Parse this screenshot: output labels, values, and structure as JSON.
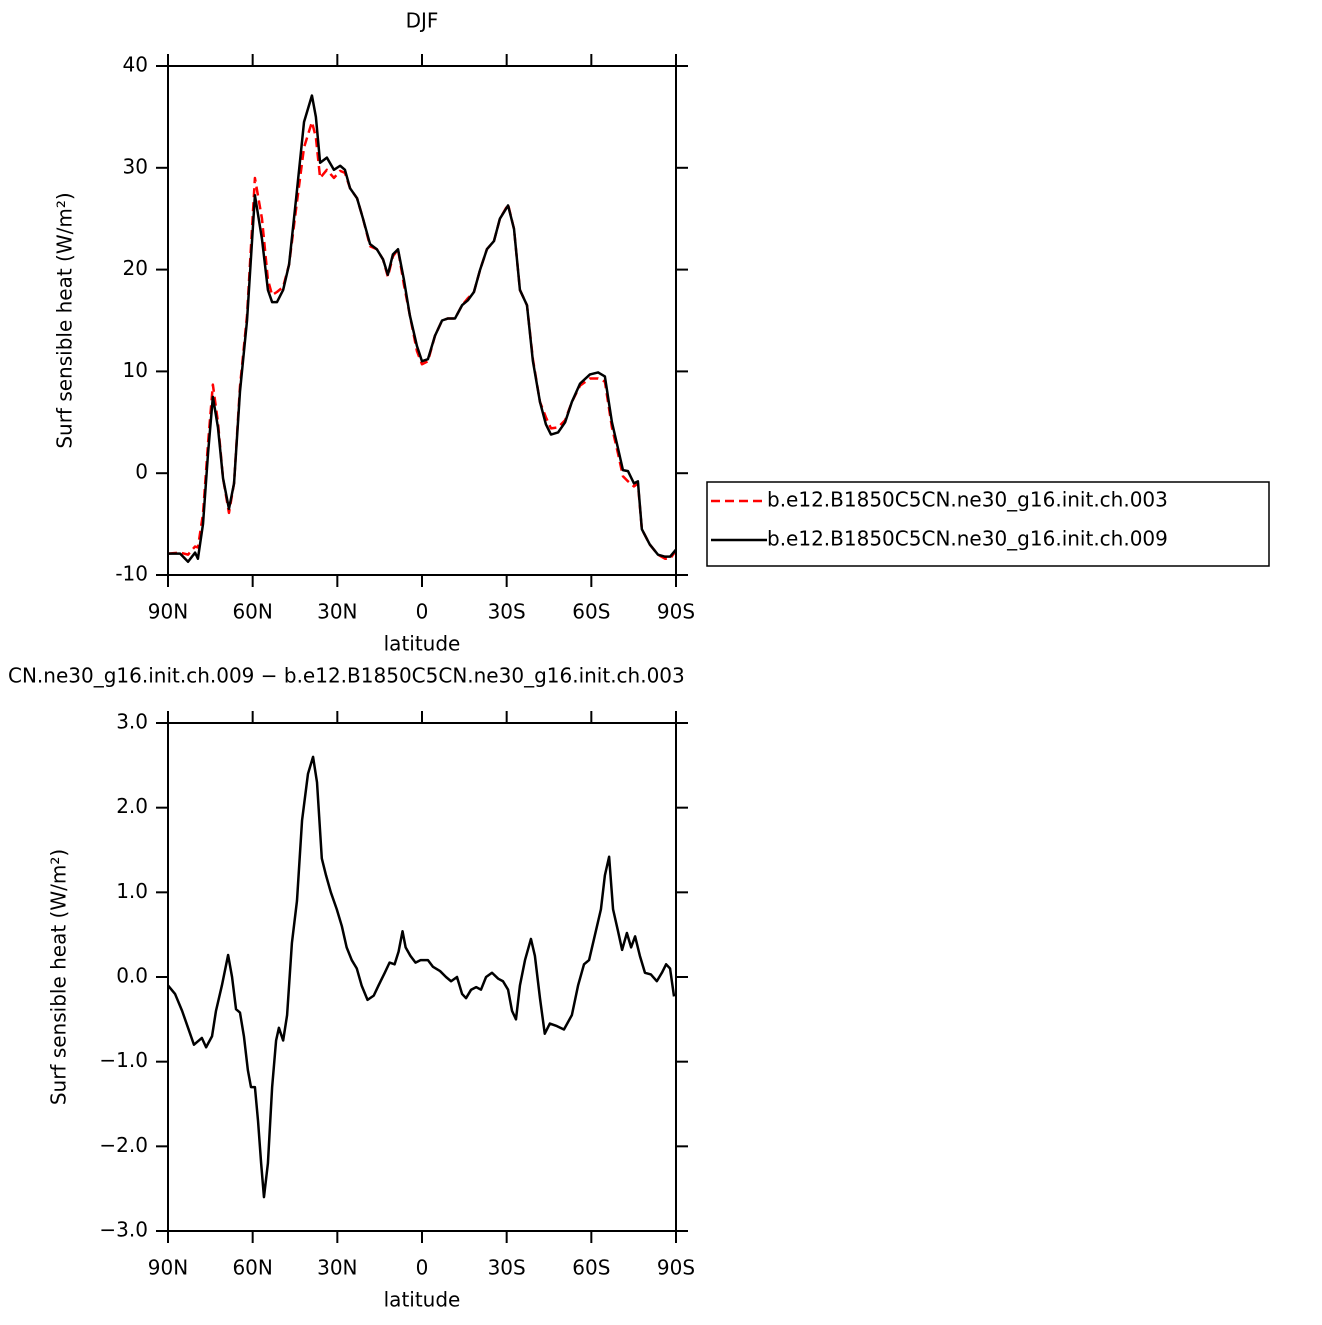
{
  "chart_data": [
    {
      "type": "line",
      "title": "DJF",
      "xlabel": "latitude",
      "ylabel": "Surf sensible heat (W/m²)",
      "xlim": [
        90,
        -90
      ],
      "xticks": [
        {
          "value": 90,
          "label": "90N"
        },
        {
          "value": 60,
          "label": "60N"
        },
        {
          "value": 30,
          "label": "30N"
        },
        0,
        {
          "value": -30,
          "label": "30S"
        },
        {
          "value": -60,
          "label": "60S"
        },
        {
          "value": -90,
          "label": "90S"
        }
      ],
      "ylim": [
        -10,
        40
      ],
      "yticks": [
        -10,
        0,
        10,
        20,
        30,
        40
      ],
      "legend": "right",
      "x": [
        90,
        85.7,
        82.9,
        80.4,
        79.4,
        77.6,
        75.8,
        74.1,
        72.3,
        70.5,
        68.4,
        66.6,
        64.5,
        62,
        59.2,
        56.7,
        54.6,
        53.1,
        51.4,
        49.2,
        47.1,
        44.6,
        41.8,
        39,
        37.6,
        36.1,
        33.7,
        31.2,
        29,
        27.3,
        25.5,
        23,
        20.9,
        18.4,
        16,
        13.8,
        12.1,
        10.3,
        8.5,
        6.4,
        4.3,
        1.8,
        0,
        -2.1,
        -4.6,
        -7.1,
        -9.2,
        -11.7,
        -14.2,
        -16.3,
        -18.4,
        -20.6,
        -23,
        -25.5,
        -27.6,
        -30.5,
        -32.6,
        -34.7,
        -37.2,
        -39.3,
        -41.8,
        -43.9,
        -45.7,
        -48.2,
        -50.7,
        -53.1,
        -56,
        -59.5,
        -62.4,
        -64.8,
        -67.3,
        -69.4,
        -71.2,
        -73,
        -75.1,
        -76.5,
        -77.9,
        -80.7,
        -83.6,
        -86.1,
        -87.9,
        -90
      ],
      "series": [
        {
          "name": "b.e12.B1850C5CN.ne30_g16.init.ch.003",
          "color": "#ff0000",
          "dashed": true,
          "values": [
            -7.9,
            -7.8,
            -8,
            -7.2,
            -7.3,
            -4,
            3,
            8.7,
            5,
            -0.5,
            -3.9,
            -1,
            8.5,
            15.5,
            29,
            25,
            19,
            17.5,
            17.8,
            18.3,
            20.5,
            26,
            32,
            34.5,
            33,
            29,
            29.8,
            29,
            29.7,
            29.5,
            28,
            27,
            25,
            22.3,
            22,
            21,
            19.3,
            21.3,
            22,
            18.5,
            15.5,
            12,
            10.7,
            11,
            13.5,
            15,
            15.2,
            15.2,
            16.5,
            17.2,
            17.8,
            20,
            22,
            22.8,
            25,
            26.4,
            24,
            18,
            16.5,
            11.2,
            7,
            5.5,
            4.4,
            4.5,
            5.2,
            7,
            8.6,
            9.3,
            9.3,
            9,
            4.5,
            2,
            -0.3,
            -0.8,
            -1.3,
            -1,
            -5.5,
            -7,
            -8,
            -8.4,
            -8.4,
            -7.6
          ]
        },
        {
          "name": "b.e12.B1850C5CN.ne30_g16.init.ch.009",
          "color": "#000000",
          "dashed": false,
          "values": [
            -7.9,
            -7.9,
            -8.7,
            -7.8,
            -8.4,
            -5,
            2,
            7.5,
            4.5,
            -0.5,
            -3.5,
            -1,
            8,
            15,
            27.3,
            23,
            18,
            16.8,
            16.8,
            18,
            20.5,
            27,
            34.5,
            37.1,
            35,
            30.5,
            31,
            29.8,
            30.2,
            29.8,
            28,
            27,
            25,
            22.5,
            22,
            21,
            19.5,
            21.5,
            22,
            19,
            15.5,
            12.5,
            11,
            11.2,
            13.5,
            15,
            15.2,
            15.2,
            16.5,
            17,
            17.8,
            20,
            22,
            22.8,
            25,
            26.3,
            24,
            18,
            16.5,
            11,
            7,
            4.8,
            3.8,
            4,
            5,
            7,
            8.8,
            9.7,
            9.9,
            9.5,
            5,
            2.5,
            0.3,
            0.2,
            -1,
            -0.8,
            -5.5,
            -7,
            -8,
            -8.2,
            -8.2,
            -7.5
          ]
        }
      ]
    },
    {
      "type": "line",
      "title": "CN.ne30_g16.init.ch.009 − b.e12.B1850C5CN.ne30_g16.init.ch.003",
      "xlabel": "latitude",
      "ylabel": "Surf sensible heat (W/m²)",
      "xlim": [
        90,
        -90
      ],
      "xticks": [
        {
          "value": 90,
          "label": "90N"
        },
        {
          "value": 60,
          "label": "60N"
        },
        {
          "value": 30,
          "label": "30N"
        },
        0,
        {
          "value": -30,
          "label": "30S"
        },
        {
          "value": -60,
          "label": "60S"
        },
        {
          "value": -90,
          "label": "90S"
        }
      ],
      "ylim": [
        -3,
        3
      ],
      "yticks": [
        {
          "value": -3,
          "label": "−3.0"
        },
        {
          "value": -2,
          "label": "−2.0"
        },
        {
          "value": -1,
          "label": "−1.0"
        },
        {
          "value": 0,
          "label": "0.0"
        },
        {
          "value": 1,
          "label": "1.0"
        },
        {
          "value": 2,
          "label": "2.0"
        },
        {
          "value": 3,
          "label": "3.0"
        }
      ],
      "x": [
        90,
        87.5,
        85,
        82.9,
        80.8,
        78,
        76.5,
        74.4,
        73,
        70.9,
        68.7,
        67.3,
        65.9,
        64.5,
        63.1,
        61.7,
        60.6,
        59.2,
        58.1,
        57,
        56,
        54.6,
        53.1,
        51.7,
        50.7,
        49.2,
        47.8,
        46.1,
        44.3,
        42.5,
        40.4,
        38.6,
        37.2,
        35.5,
        34,
        32.3,
        30.2,
        28.4,
        26.7,
        24.9,
        23.1,
        21.4,
        19.3,
        17.1,
        15.4,
        13.2,
        11.5,
        9.7,
        8.3,
        6.9,
        5.8,
        4.1,
        2.3,
        0.5,
        -2.1,
        -3.9,
        -6.4,
        -8.5,
        -10.3,
        -12.4,
        -14.2,
        -15.6,
        -17.4,
        -19.2,
        -20.9,
        -22.7,
        -24.8,
        -27,
        -28.7,
        -30.5,
        -31.9,
        -33.3,
        -34.7,
        -36.5,
        -38.6,
        -40,
        -41.8,
        -43.5,
        -45.3,
        -47.8,
        -50.3,
        -53.1,
        -55.3,
        -57.4,
        -59.2,
        -61.3,
        -63.4,
        -64.8,
        -66.3,
        -67.7,
        -69.4,
        -70.9,
        -72.6,
        -74.1,
        -75.5,
        -77.2,
        -79,
        -81.1,
        -83.2,
        -85,
        -86.5,
        -87.9,
        -89.3
      ],
      "series": [
        {
          "color": "#000000",
          "dashed": false,
          "values": [
            -0.1,
            -0.2,
            -0.4,
            -0.6,
            -0.8,
            -0.72,
            -0.83,
            -0.7,
            -0.4,
            -0.1,
            0.26,
            0,
            -0.38,
            -0.42,
            -0.7,
            -1.1,
            -1.3,
            -1.3,
            -1.7,
            -2.2,
            -2.6,
            -2.2,
            -1.3,
            -0.75,
            -0.6,
            -0.75,
            -0.45,
            0.4,
            0.9,
            1.85,
            2.4,
            2.6,
            2.3,
            1.4,
            1.2,
            1,
            0.8,
            0.6,
            0.35,
            0.2,
            0.1,
            -0.1,
            -0.27,
            -0.22,
            -0.1,
            0.05,
            0.17,
            0.15,
            0.3,
            0.54,
            0.35,
            0.25,
            0.17,
            0.2,
            0.2,
            0.12,
            0.07,
            0,
            -0.05,
            0,
            -0.2,
            -0.25,
            -0.15,
            -0.12,
            -0.15,
            0,
            0.05,
            -0.02,
            -0.05,
            -0.15,
            -0.4,
            -0.5,
            -0.1,
            0.2,
            0.45,
            0.25,
            -0.25,
            -0.67,
            -0.55,
            -0.58,
            -0.62,
            -0.45,
            -0.1,
            0.15,
            0.2,
            0.5,
            0.8,
            1.2,
            1.42,
            0.8,
            0.55,
            0.32,
            0.52,
            0.35,
            0.48,
            0.25,
            0.05,
            0.03,
            -0.05,
            0.05,
            0.15,
            0.1,
            -0.23
          ]
        }
      ]
    }
  ]
}
